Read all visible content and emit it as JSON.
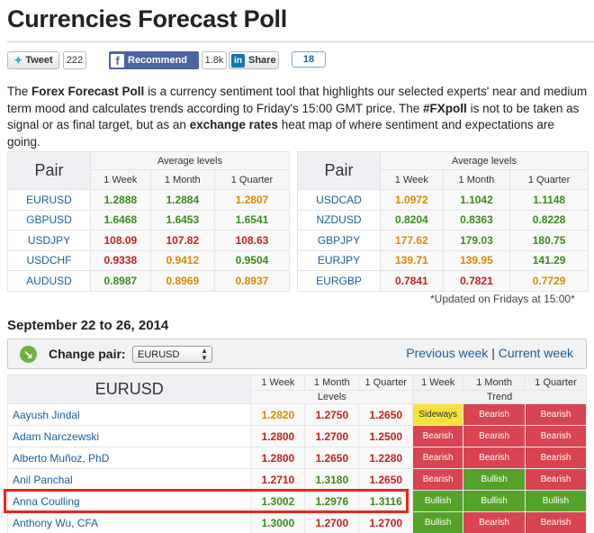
{
  "title": "Currencies Forecast Poll",
  "social": {
    "tweet_label": "Tweet",
    "tweet_count": "222",
    "recommend_label": "Recommend",
    "recommend_count": "1.8k",
    "share_label": "Share",
    "share_count": "18"
  },
  "intro": {
    "p1": "The ",
    "b1": "Forex Forecast Poll",
    "p2": " is a currency sentiment tool that highlights our selected experts' near and medium term mood and calculates trends according to Friday's 15:00 GMT price. The ",
    "b2": "#FXpoll",
    "p3": " is not to be taken as signal or as final target, but as an ",
    "b3": "exchange rates",
    "p4": " heat map of where sentiment and expectations are going."
  },
  "average": {
    "pair_header": "Pair",
    "group_header": "Average levels",
    "cols": [
      "1 Week",
      "1 Month",
      "1 Quarter"
    ],
    "left": [
      {
        "pair": "EURUSD",
        "v": [
          "1.2888",
          "1.2884",
          "1.2807"
        ],
        "c": [
          "g",
          "g",
          "o"
        ]
      },
      {
        "pair": "GBPUSD",
        "v": [
          "1.6468",
          "1.6453",
          "1.6541"
        ],
        "c": [
          "g",
          "g",
          "g"
        ]
      },
      {
        "pair": "USDJPY",
        "v": [
          "108.09",
          "107.82",
          "108.63"
        ],
        "c": [
          "r",
          "r",
          "r"
        ]
      },
      {
        "pair": "USDCHF",
        "v": [
          "0.9338",
          "0.9412",
          "0.9504"
        ],
        "c": [
          "r",
          "o",
          "g"
        ]
      },
      {
        "pair": "AUDUSD",
        "v": [
          "0.8987",
          "0.8969",
          "0.8937"
        ],
        "c": [
          "g",
          "o",
          "o"
        ]
      }
    ],
    "right": [
      {
        "pair": "USDCAD",
        "v": [
          "1.0972",
          "1.1042",
          "1.1148"
        ],
        "c": [
          "o",
          "g",
          "g"
        ]
      },
      {
        "pair": "NZDUSD",
        "v": [
          "0.8204",
          "0.8363",
          "0.8228"
        ],
        "c": [
          "g",
          "g",
          "g"
        ]
      },
      {
        "pair": "GBPJPY",
        "v": [
          "177.62",
          "179.03",
          "180.75"
        ],
        "c": [
          "o",
          "g",
          "g"
        ]
      },
      {
        "pair": "EURJPY",
        "v": [
          "139.71",
          "139.95",
          "141.29"
        ],
        "c": [
          "o",
          "o",
          "g"
        ]
      },
      {
        "pair": "EURGBP",
        "v": [
          "0.7841",
          "0.7821",
          "0.7729"
        ],
        "c": [
          "r",
          "r",
          "o"
        ]
      }
    ],
    "updated_note": "*Updated on Fridays at 15:00*"
  },
  "week_title": "September 22 to 26, 2014",
  "change_pair": {
    "label": "Change pair:",
    "selected": "EURUSD",
    "previous_week": "Previous week",
    "separator": "|",
    "current_week": "Current week"
  },
  "poll": {
    "pair_header": "EURUSD",
    "cols": [
      "1 Week",
      "1 Month",
      "1 Quarter"
    ],
    "levels_header": "Levels",
    "trend_header": "Trend",
    "rows": [
      {
        "name": "Aayush Jindal",
        "levels": [
          "1.2820",
          "1.2750",
          "1.2650"
        ],
        "lc": [
          "o",
          "r",
          "r"
        ],
        "trend": [
          "Sideways",
          "Bearish",
          "Bearish"
        ]
      },
      {
        "name": "Adam Narczewski",
        "levels": [
          "1.2800",
          "1.2700",
          "1.2500"
        ],
        "lc": [
          "r",
          "r",
          "r"
        ],
        "trend": [
          "Bearish",
          "Bearish",
          "Bearish"
        ]
      },
      {
        "name": "Alberto Muñoz, PhD",
        "levels": [
          "1.2800",
          "1.2650",
          "1.2280"
        ],
        "lc": [
          "r",
          "r",
          "r"
        ],
        "trend": [
          "Bearish",
          "Bearish",
          "Bearish"
        ]
      },
      {
        "name": "Anil Panchal",
        "levels": [
          "1.2710",
          "1.3180",
          "1.2650"
        ],
        "lc": [
          "r",
          "g",
          "r"
        ],
        "trend": [
          "Bearish",
          "Bullish",
          "Bearish"
        ]
      },
      {
        "name": "Anna Coulling",
        "levels": [
          "1.3002",
          "1.2976",
          "1.3116"
        ],
        "lc": [
          "g",
          "g",
          "g"
        ],
        "trend": [
          "Bullish",
          "Bullish",
          "Bullish"
        ]
      },
      {
        "name": "Anthony Wu, CFA",
        "levels": [
          "1.3000",
          "1.2700",
          "1.2700"
        ],
        "lc": [
          "g",
          "r",
          "r"
        ],
        "trend": [
          "Bullish",
          "Bearish",
          "Bearish"
        ]
      }
    ]
  }
}
